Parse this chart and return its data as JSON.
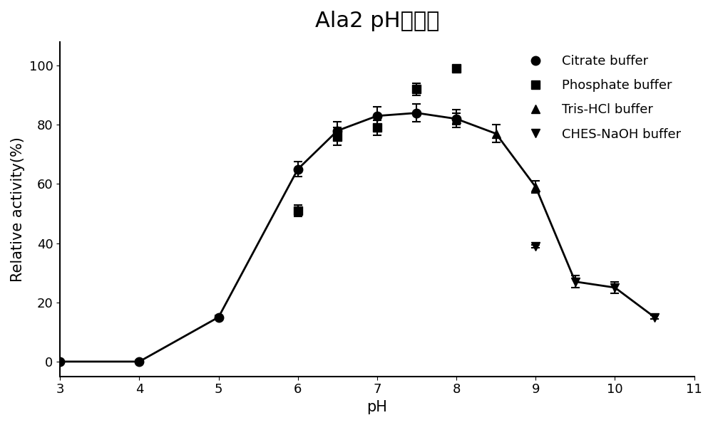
{
  "title": "Ala2 pH适应性",
  "xlabel": "pH",
  "ylabel": "Relative activity(%)",
  "xlim": [
    3,
    11
  ],
  "ylim": [
    -5,
    108
  ],
  "xticks": [
    3,
    4,
    5,
    6,
    7,
    8,
    9,
    10,
    11
  ],
  "yticks": [
    0,
    20,
    40,
    60,
    80,
    100
  ],
  "series": [
    {
      "label": "Citrate buffer",
      "marker": "o",
      "markersize": 9,
      "x": [
        3,
        4,
        5,
        6,
        6.5,
        7,
        7.5,
        8
      ],
      "y": [
        0,
        0,
        15,
        65,
        78,
        83,
        84,
        82
      ],
      "yerr": [
        0.5,
        0.5,
        0.5,
        2.5,
        3,
        3,
        3,
        3
      ]
    },
    {
      "label": "Phosphate buffer",
      "marker": "s",
      "markersize": 9,
      "x": [
        6,
        6.5,
        7,
        7.5,
        8
      ],
      "y": [
        51,
        76,
        79,
        92,
        99
      ],
      "yerr": [
        2,
        3,
        2.5,
        2,
        1
      ]
    },
    {
      "label": "Tris-HCl buffer",
      "marker": "^",
      "markersize": 9,
      "x": [
        8,
        8.5,
        9
      ],
      "y": [
        82,
        77,
        59
      ],
      "yerr": [
        2,
        3,
        2
      ]
    },
    {
      "label": "CHES-NaOH buffer",
      "marker": "v",
      "markersize": 9,
      "x": [
        9,
        9.5,
        10,
        10.5
      ],
      "y": [
        39,
        27,
        25,
        15
      ],
      "yerr": [
        0.5,
        2,
        2,
        0.5
      ]
    }
  ],
  "backbone_x": [
    3,
    4,
    5,
    6,
    6.5,
    7,
    7.5,
    8,
    8.5,
    9,
    9.5,
    10,
    10.5
  ],
  "backbone_y": [
    0,
    0,
    15,
    65,
    78,
    83,
    84,
    82,
    77,
    59,
    27,
    25,
    15
  ],
  "line_color": "#000000",
  "line_width": 2.0,
  "background_color": "#ffffff",
  "title_fontsize": 22,
  "label_fontsize": 15,
  "tick_fontsize": 13,
  "legend_fontsize": 13
}
